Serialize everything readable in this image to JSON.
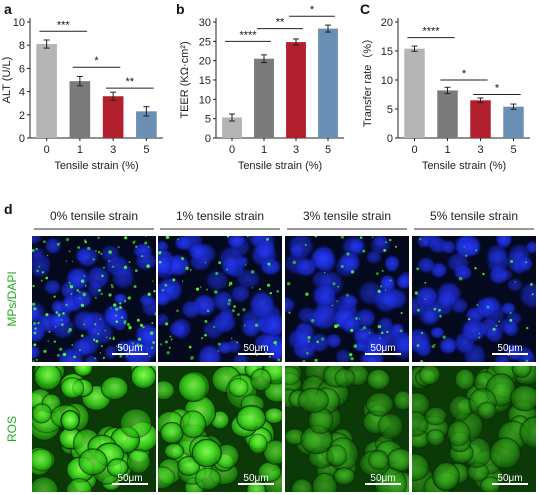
{
  "panel_d_letter": "d",
  "chart_data": [
    {
      "panel": "a",
      "type": "bar",
      "ylabel": "ALT (U/L)",
      "xlabel": "Tensile strain (%)",
      "categories": [
        "0",
        "1",
        "3",
        "5"
      ],
      "values": [
        8.1,
        4.9,
        3.6,
        2.3
      ],
      "errors": [
        0.35,
        0.4,
        0.35,
        0.4
      ],
      "ylim": [
        0,
        10
      ],
      "yticks": [
        0,
        2,
        4,
        6,
        8,
        10
      ],
      "colors": [
        "#b4b4b4",
        "#7a7a7a",
        "#b21f2d",
        "#6a8fb5"
      ],
      "significance": [
        {
          "from": 0,
          "to": 1,
          "label": "***",
          "y": 9.2
        },
        {
          "from": 1,
          "to": 2,
          "label": "*",
          "y": 6.1
        },
        {
          "from": 2,
          "to": 3,
          "label": "**",
          "y": 4.3
        }
      ]
    },
    {
      "panel": "b",
      "type": "bar",
      "ylabel": "TEER (KΩ·cm²)",
      "xlabel": "Tensile strain (%)",
      "categories": [
        "0",
        "1",
        "3",
        "5"
      ],
      "values": [
        5.3,
        20.5,
        24.8,
        28.3
      ],
      "errors": [
        0.9,
        1.0,
        0.8,
        0.9
      ],
      "ylim": [
        0,
        30
      ],
      "yticks": [
        0,
        5,
        10,
        15,
        20,
        25,
        30
      ],
      "colors": [
        "#b4b4b4",
        "#7a7a7a",
        "#b21f2d",
        "#6a8fb5"
      ],
      "significance": [
        {
          "from": 0,
          "to": 1,
          "label": "****",
          "y": 25.0
        },
        {
          "from": 1,
          "to": 2,
          "label": "**",
          "y": 28.3
        },
        {
          "from": 2,
          "to": 3,
          "label": "*",
          "y": 31.5
        }
      ]
    },
    {
      "panel": "C",
      "type": "bar",
      "ylabel": "Transfer rate（%）",
      "xlabel": "Tensile strain (%)",
      "categories": [
        "0",
        "1",
        "3",
        "5"
      ],
      "values": [
        15.4,
        8.2,
        6.5,
        5.4
      ],
      "errors": [
        0.45,
        0.55,
        0.4,
        0.45
      ],
      "ylim": [
        0,
        20
      ],
      "yticks": [
        0,
        5,
        10,
        15,
        20
      ],
      "colors": [
        "#b4b4b4",
        "#7a7a7a",
        "#b21f2d",
        "#6a8fb5"
      ],
      "significance": [
        {
          "from": 0,
          "to": 1,
          "label": "****",
          "y": 17.3
        },
        {
          "from": 1,
          "to": 2,
          "label": "*",
          "y": 10.0
        },
        {
          "from": 2,
          "to": 3,
          "label": "*",
          "y": 7.5
        }
      ]
    }
  ],
  "image_grid": {
    "column_titles": [
      "0% tensile strain",
      "1% tensile strain",
      "3% tensile strain",
      "5% tensile strain"
    ],
    "row_titles": [
      "MPs/DAPI",
      "ROS"
    ],
    "row_colors": [
      "#1fae1f",
      "#1fae1f"
    ],
    "scale_bar_label": "50μm"
  }
}
